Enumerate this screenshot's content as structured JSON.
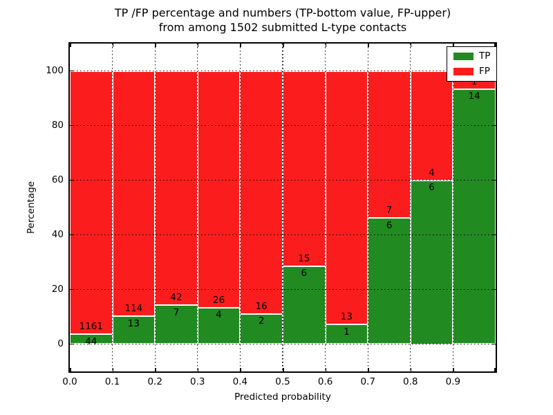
{
  "figure": {
    "title_line1": "TP /FP percentage and numbers (TP-bottom value, FP-upper)",
    "title_line2": "from among 1502 submitted L-type contacts"
  },
  "axes": {
    "xlabel": "Predicted probability",
    "ylabel": "Percentage",
    "x_tick_labels": [
      "0.0",
      "0.1",
      "0.2",
      "0.3",
      "0.4",
      "0.5",
      "0.6",
      "0.7",
      "0.8",
      "0.9"
    ],
    "y_tick_labels": [
      "0",
      "20",
      "40",
      "60",
      "80",
      "100"
    ]
  },
  "legend": {
    "entries": [
      {
        "label": "TP",
        "color": "#218b21"
      },
      {
        "label": "FP",
        "color": "#fb1d1d"
      }
    ]
  },
  "chart_data": {
    "type": "bar",
    "stacked": true,
    "normalized": "each bin stacks to 100%",
    "title": "TP /FP percentage and numbers (TP-bottom value, FP-upper) from among 1502 submitted L-type contacts",
    "xlabel": "Predicted probability",
    "ylabel": "Percentage",
    "total_contacts": 1502,
    "x_bins": [
      "0.0-0.1",
      "0.1-0.2",
      "0.2-0.3",
      "0.3-0.4",
      "0.4-0.5",
      "0.5-0.6",
      "0.6-0.7",
      "0.7-0.8",
      "0.8-0.9",
      "0.9-1.0"
    ],
    "xlim": [
      0.0,
      1.0
    ],
    "ylim": [
      -10,
      110
    ],
    "y_ticks": [
      0,
      20,
      40,
      60,
      80,
      100
    ],
    "grid": "dotted, drawn over bars",
    "legend_position": "upper right",
    "series": [
      {
        "name": "TP",
        "color": "#218b21",
        "counts": [
          44,
          13,
          7,
          4,
          2,
          6,
          1,
          6,
          6,
          14
        ]
      },
      {
        "name": "FP",
        "color": "#fb1d1d",
        "counts": [
          1161,
          114,
          42,
          26,
          16,
          15,
          13,
          7,
          4,
          1
        ]
      }
    ],
    "tp_percent_of_bin": [
      3.7,
      10.2,
      14.3,
      13.3,
      11.1,
      28.6,
      7.1,
      46.2,
      60.0,
      93.3
    ]
  }
}
